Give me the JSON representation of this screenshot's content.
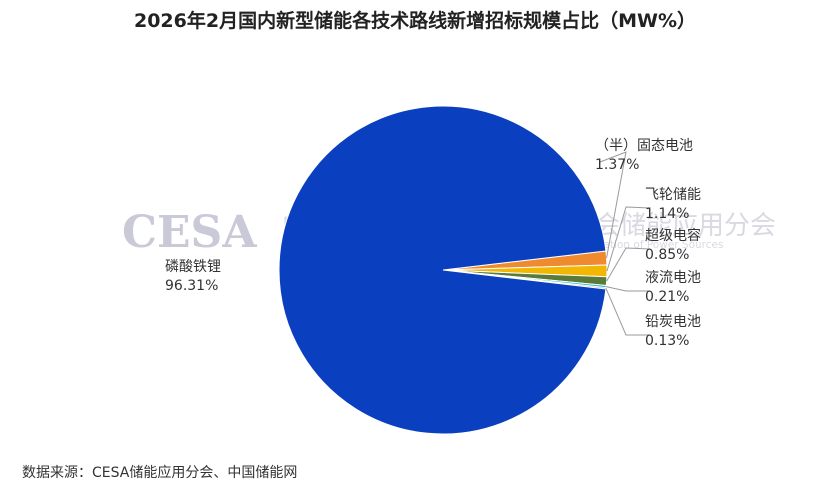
{
  "header": {
    "title": "2026年2月国内新型储能各技术路线新增招标规模占比（MW%）"
  },
  "watermark": {
    "logo": "CESA",
    "org_cn": "中国化学与物理电源行业协会储能应用分会",
    "org_en": "Energy Storage Application Branch of China Industrial Association of Power Sources"
  },
  "chart_data": {
    "type": "pie",
    "title": "2026年2月国内新型储能各技术路线新增招标规模占比（MW%）",
    "unit": "MW%",
    "slices": [
      {
        "name": "磷酸铁锂",
        "value": 96.31,
        "label": "96.31%",
        "color": "#0a3fbf"
      },
      {
        "name": "（半）固态电池",
        "value": 1.37,
        "label": "1.37%",
        "color": "#ef8a2e"
      },
      {
        "name": "飞轮储能",
        "value": 1.14,
        "label": "1.14%",
        "color": "#f2b705"
      },
      {
        "name": "超级电容",
        "value": 0.85,
        "label": "0.85%",
        "color": "#5a7a3a"
      },
      {
        "name": "液流电池",
        "value": 0.21,
        "label": "0.21%",
        "color": "#2ab7d6"
      },
      {
        "name": "铅炭电池",
        "value": 0.13,
        "label": "0.13%",
        "color": "#8a8a8a"
      }
    ]
  },
  "footer": {
    "source": "数据来源：CESA储能应用分会、中国储能网"
  }
}
